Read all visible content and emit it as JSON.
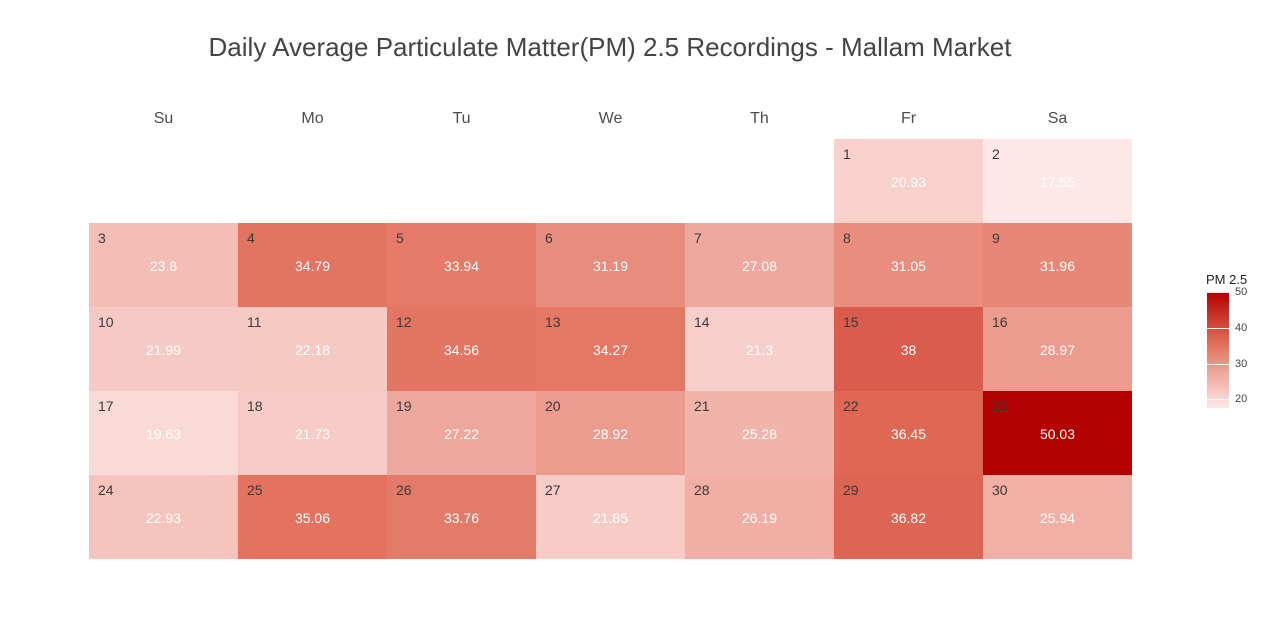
{
  "chart_data": {
    "type": "heatmap",
    "title": "Daily Average Particulate Matter(PM) 2.5 Recordings - Mallam Market",
    "weekdays": [
      "Su",
      "Mo",
      "Tu",
      "We",
      "Th",
      "Fr",
      "Sa"
    ],
    "first_weekday_index": 5,
    "days": [
      {
        "day": "1",
        "value": "20.93"
      },
      {
        "day": "2",
        "value": "17.55"
      },
      {
        "day": "3",
        "value": "23.8"
      },
      {
        "day": "4",
        "value": "34.79"
      },
      {
        "day": "5",
        "value": "33.94"
      },
      {
        "day": "6",
        "value": "31.19"
      },
      {
        "day": "7",
        "value": "27.08"
      },
      {
        "day": "8",
        "value": "31.05"
      },
      {
        "day": "9",
        "value": "31.96"
      },
      {
        "day": "10",
        "value": "21.99"
      },
      {
        "day": "11",
        "value": "22.18"
      },
      {
        "day": "12",
        "value": "34.56"
      },
      {
        "day": "13",
        "value": "34.27"
      },
      {
        "day": "14",
        "value": "21.3"
      },
      {
        "day": "15",
        "value": "38"
      },
      {
        "day": "16",
        "value": "28.97"
      },
      {
        "day": "17",
        "value": "19.63"
      },
      {
        "day": "18",
        "value": "21.73"
      },
      {
        "day": "19",
        "value": "27.22"
      },
      {
        "day": "20",
        "value": "28.92"
      },
      {
        "day": "21",
        "value": "25.28"
      },
      {
        "day": "22",
        "value": "36.45"
      },
      {
        "day": "23",
        "value": "50.03"
      },
      {
        "day": "24",
        "value": "22.93"
      },
      {
        "day": "25",
        "value": "35.06"
      },
      {
        "day": "26",
        "value": "33.76"
      },
      {
        "day": "27",
        "value": "21.85"
      },
      {
        "day": "28",
        "value": "26.19"
      },
      {
        "day": "29",
        "value": "36.82"
      },
      {
        "day": "30",
        "value": "25.94"
      }
    ],
    "legend": {
      "title": "PM 2.5",
      "ticks": [
        "20",
        "30",
        "40",
        "50"
      ],
      "range": [
        17.55,
        50.03
      ],
      "color_low": "#fde8e7",
      "color_high": "#b30000"
    }
  }
}
